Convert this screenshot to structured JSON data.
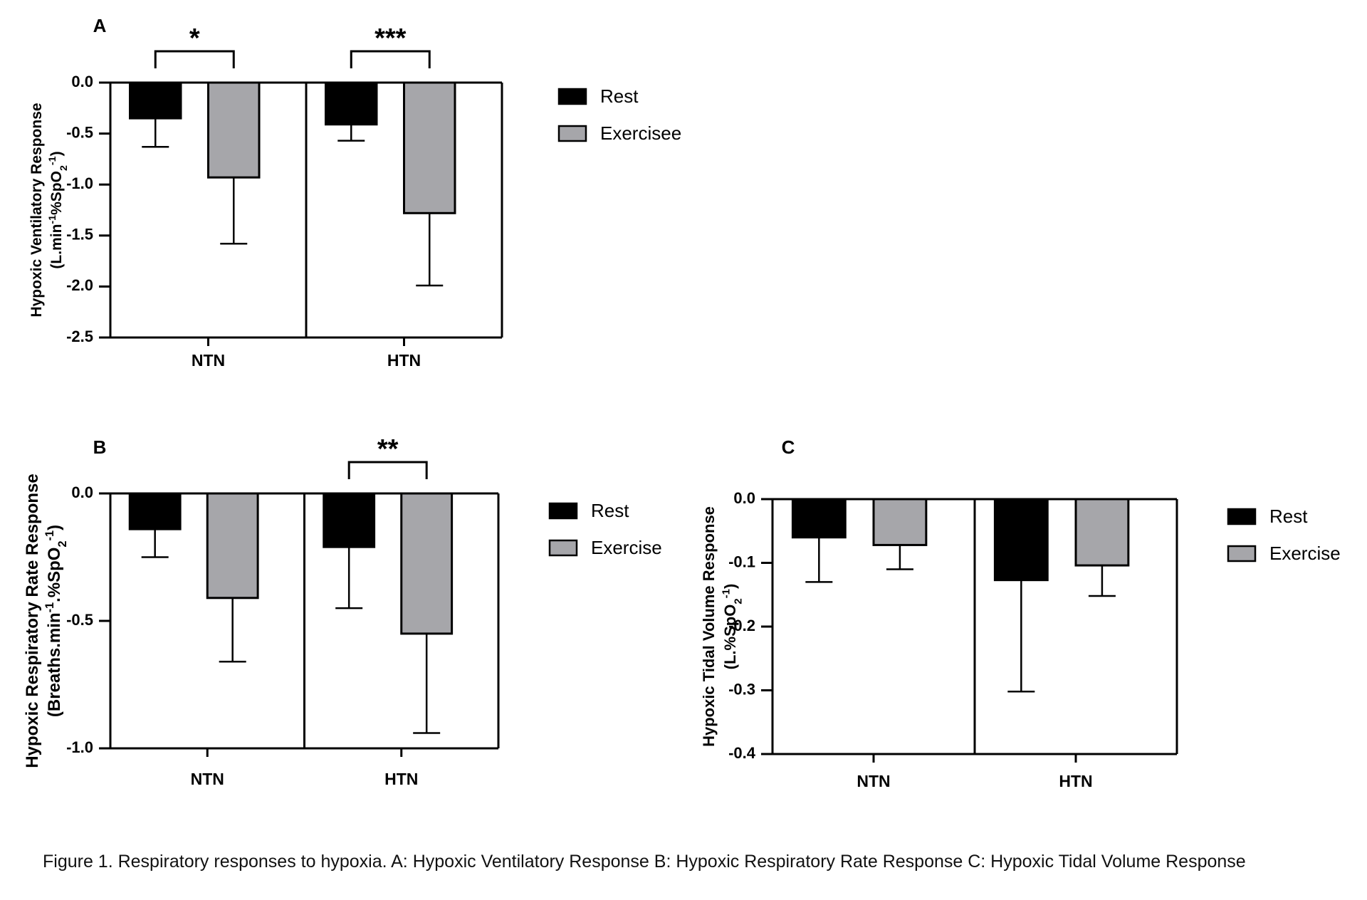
{
  "caption": "Figure 1. Respiratory responses to hypoxia. A: Hypoxic Ventilatory Response B: Hypoxic Respiratory Rate Response C: Hypoxic Tidal Volume Response",
  "chart_data": [
    {
      "type": "bar",
      "panel": "A",
      "categories": [
        "NTN",
        "HTN"
      ],
      "ylabel_line1": "Hypoxic Ventilatory Response",
      "ylabel_line2": "(L.min-1%SpO2-1)",
      "ylim": [
        -2.5,
        0.0
      ],
      "yticks": [
        0.0,
        -0.5,
        -1.0,
        -1.5,
        -2.0,
        -2.5
      ],
      "ytick_labels": [
        "0.0",
        "-0.5",
        "-1.0",
        "-1.5",
        "-2.0",
        "-2.5"
      ],
      "series": [
        {
          "name": "Rest",
          "color": "#000000",
          "values": [
            -0.35,
            -0.41
          ],
          "errors": [
            0.28,
            0.16
          ]
        },
        {
          "name": "Exercisee",
          "color": "#a6a6aa",
          "values": [
            -0.93,
            -1.28
          ],
          "errors": [
            0.65,
            0.71
          ]
        }
      ],
      "significance": [
        "*",
        "***"
      ],
      "legend_position": "right"
    },
    {
      "type": "bar",
      "panel": "B",
      "categories": [
        "NTN",
        "HTN"
      ],
      "ylabel_line1": "Hypoxic Respiratory Rate Response",
      "ylabel_line2": "(Breaths.min-1.%SpO2-1)",
      "ylim": [
        -1.0,
        0.0
      ],
      "yticks": [
        0.0,
        -0.5,
        -1.0
      ],
      "ytick_labels": [
        "0.0",
        "-0.5",
        "-1.0"
      ],
      "series": [
        {
          "name": "Rest",
          "color": "#000000",
          "values": [
            -0.14,
            -0.21
          ],
          "errors": [
            0.11,
            0.24
          ]
        },
        {
          "name": "Exercise",
          "color": "#a6a6aa",
          "values": [
            -0.41,
            -0.55
          ],
          "errors": [
            0.25,
            0.39
          ]
        }
      ],
      "significance": [
        "",
        "**"
      ],
      "legend_position": "right"
    },
    {
      "type": "bar",
      "panel": "C",
      "categories": [
        "NTN",
        "HTN"
      ],
      "ylabel_line1": "Hypoxic Tidal Volume Response",
      "ylabel_line2": "(L.%SpO2-1)",
      "ylim": [
        -0.4,
        0.0
      ],
      "yticks": [
        0.0,
        -0.1,
        -0.2,
        -0.3,
        -0.4
      ],
      "ytick_labels": [
        "0.0",
        "-0.1",
        "-0.2",
        "-0.3",
        "-0.4"
      ],
      "series": [
        {
          "name": "Rest",
          "color": "#000000",
          "values": [
            -0.06,
            -0.127
          ],
          "errors": [
            0.07,
            0.175
          ]
        },
        {
          "name": "Exercise",
          "color": "#a6a6aa",
          "values": [
            -0.072,
            -0.104
          ],
          "errors": [
            0.038,
            0.048
          ]
        }
      ],
      "significance": [
        "",
        ""
      ],
      "legend_position": "right"
    }
  ]
}
